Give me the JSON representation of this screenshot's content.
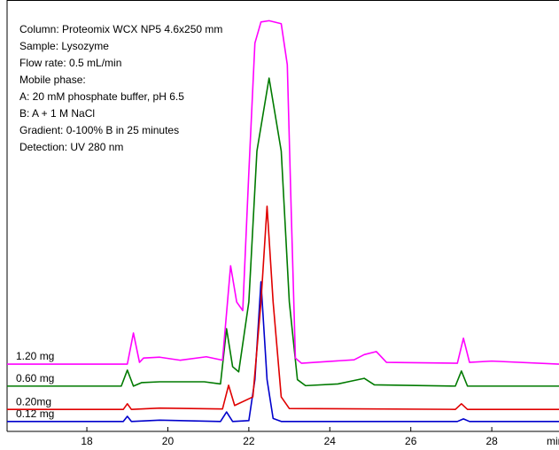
{
  "chart_data": {
    "type": "line",
    "annotations": [
      "Column: Proteomix WCX NP5 4.6x250 mm",
      "Sample: Lysozyme",
      "Flow rate: 0.5 mL/min",
      "Mobile phase:",
      "A: 20 mM phosphate buffer, pH 6.5",
      "B: A + 1 M NaCl",
      "Gradient: 0-100% B in 25 minutes",
      "Detection: UV 280 nm"
    ],
    "xlabel": "min",
    "xlim": [
      16.03,
      29.66
    ],
    "ylim": [
      0,
      100
    ],
    "xticks": [
      18,
      20,
      22,
      24,
      26,
      28
    ],
    "series": [
      {
        "name": "0.12 mg",
        "color": "#0000cc",
        "x": [
          16.03,
          18.9,
          19.0,
          19.1,
          19.8,
          21.3,
          21.45,
          21.6,
          22.0,
          22.15,
          22.3,
          22.45,
          22.6,
          22.8,
          27.15,
          27.3,
          27.45,
          29.66
        ],
        "values": [
          2.3,
          2.3,
          3.5,
          2.3,
          2.6,
          2.3,
          4.5,
          2.3,
          2.5,
          12,
          34.7,
          12,
          3,
          2.3,
          2.3,
          2.9,
          2.3,
          2.3
        ]
      },
      {
        "name": "0.20mg",
        "color": "#e00000",
        "x": [
          16.03,
          18.9,
          19.0,
          19.1,
          19.8,
          21.35,
          21.5,
          21.65,
          22.1,
          22.3,
          22.45,
          22.6,
          22.8,
          23.0,
          27.1,
          27.25,
          27.4,
          29.66
        ],
        "values": [
          5.1,
          5.1,
          6.4,
          5.1,
          5.4,
          5.2,
          10.7,
          6,
          8,
          30,
          52.2,
          30,
          8,
          5.3,
          5.1,
          6.4,
          5.1,
          5.1
        ]
      },
      {
        "name": "0.60 mg",
        "color": "#007a00",
        "x": [
          16.03,
          18.85,
          19.0,
          19.15,
          19.35,
          19.8,
          20.9,
          21.3,
          21.45,
          21.6,
          21.75,
          22.0,
          22.2,
          22.5,
          22.8,
          23.0,
          23.2,
          23.4,
          24.2,
          24.5,
          24.85,
          25.1,
          27.1,
          27.25,
          27.4,
          29.66
        ],
        "values": [
          10.5,
          10.5,
          14.2,
          10.5,
          11.3,
          11.5,
          11.5,
          11,
          23.8,
          15,
          13.8,
          30,
          65,
          81.9,
          65,
          30,
          12,
          10.6,
          11,
          11.6,
          12.3,
          10.8,
          10.5,
          14,
          10.5,
          10.5
        ]
      },
      {
        "name": "1.20 mg",
        "color": "#ff00ff",
        "x": [
          16.03,
          19.0,
          19.15,
          19.3,
          19.4,
          19.8,
          20.3,
          20.95,
          21.35,
          21.55,
          21.7,
          21.85,
          22.0,
          22.15,
          22.3,
          22.5,
          22.8,
          22.95,
          23.05,
          23.15,
          23.3,
          24.6,
          24.85,
          25.15,
          25.4,
          27.15,
          27.3,
          27.45,
          28.0,
          29.66
        ],
        "values": [
          15.6,
          15.6,
          22.8,
          16,
          17,
          17.2,
          16.5,
          17.3,
          16.5,
          38.4,
          30,
          28,
          60,
          90,
          94.9,
          95.2,
          94.5,
          85,
          50,
          17,
          15.8,
          16.6,
          17.8,
          18.5,
          16,
          15.8,
          21.6,
          16,
          16.3,
          15.6
        ]
      }
    ]
  }
}
